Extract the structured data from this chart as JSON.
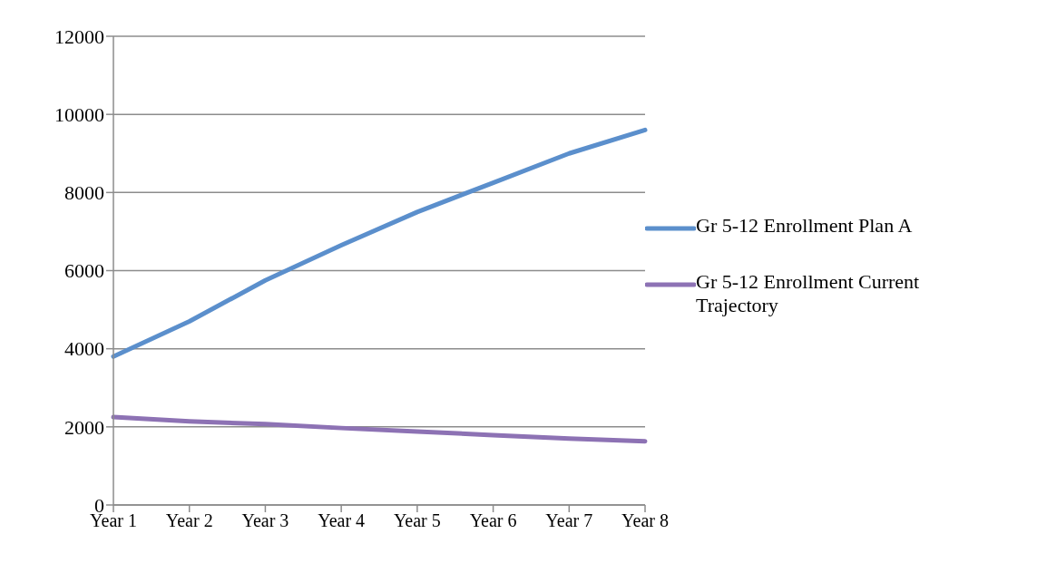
{
  "chart_data": {
    "type": "line",
    "categories": [
      "Year 1",
      "Year 2",
      "Year 3",
      "Year 4",
      "Year 5",
      "Year 6",
      "Year 7",
      "Year 8"
    ],
    "series": [
      {
        "name": "Gr 5-12 Enrollment Plan A",
        "color": "#5b8fcc",
        "values": [
          3800,
          4700,
          5750,
          6650,
          7500,
          8250,
          9000,
          9600
        ]
      },
      {
        "name": "Gr 5-12 Enrollment Current Trajectory",
        "color": "#8d72b4",
        "values": [
          2250,
          2140,
          2070,
          1970,
          1880,
          1790,
          1700,
          1630
        ]
      }
    ],
    "ylim": [
      0,
      12000
    ],
    "yticks": [
      0,
      2000,
      4000,
      6000,
      8000,
      10000,
      12000
    ],
    "grid": "y",
    "legend": "right",
    "marker": "none",
    "line_style": "solid"
  }
}
